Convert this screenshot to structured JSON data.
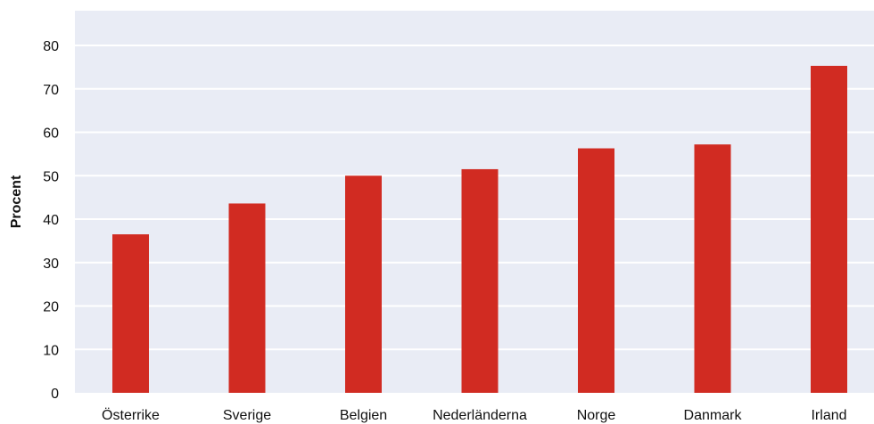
{
  "chart_data": {
    "type": "bar",
    "title": "",
    "xlabel": "",
    "ylabel": "Procent",
    "categories": [
      "Österrike",
      "Sverige",
      "Belgien",
      "Nederländerna",
      "Norge",
      "Danmark",
      "Irland"
    ],
    "values": [
      36.5,
      43.6,
      50.0,
      51.5,
      56.3,
      57.2,
      75.3
    ],
    "ylim": [
      0,
      88
    ],
    "yticks": [
      0,
      10,
      20,
      30,
      40,
      50,
      60,
      70,
      80
    ],
    "grid": true,
    "colors": {
      "bar": "#d12b22",
      "plot_background": "#e9ecf5",
      "grid": "#ffffff",
      "text": "#111111"
    }
  }
}
